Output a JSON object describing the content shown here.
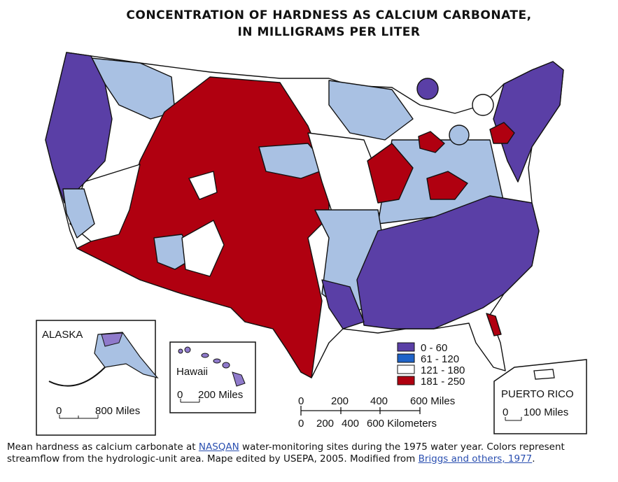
{
  "title_line1": "CONCENTRATION OF HARDNESS AS CALCIUM CARBONATE,",
  "title_line2": "IN MILLIGRAMS PER LITER",
  "legend": [
    {
      "label": "0 - 60",
      "color": "#5a3fa6"
    },
    {
      "label": "61 - 120",
      "color": "#1f63c8"
    },
    {
      "label": "121 - 180",
      "color": "#ffffff"
    },
    {
      "label": "181 - 250",
      "color": "#b00010"
    }
  ],
  "map_colors": {
    "light_blue": "#a9c1e3",
    "purple": "#5a3fa6",
    "red": "#b00010",
    "white": "#ffffff"
  },
  "insets": {
    "alaska": {
      "label": "ALASKA",
      "scale_zero": "0",
      "scale": "800 Miles"
    },
    "hawaii": {
      "label": "Hawaii",
      "scale_zero": "0",
      "scale": "200 Miles"
    },
    "puerto_rico": {
      "label": "PUERTO RICO",
      "scale_zero": "0",
      "scale": "100 Miles"
    }
  },
  "scale_bar": {
    "miles_ticks": [
      "0",
      "200",
      "400",
      "600 Miles"
    ],
    "km_ticks": [
      "0",
      "200",
      "400",
      "600 Kilometers"
    ]
  },
  "caption": {
    "part1": "Mean hardness as calcium carbonate at ",
    "link1": "NASQAN",
    "part2": " water-monitoring sites during the 1975 water year. Colors represent streamflow from the hydrologic-unit area. Mape edited by USEPA, 2005. Modified from ",
    "link2": "Briggs and others, 1977",
    "part3": "."
  }
}
